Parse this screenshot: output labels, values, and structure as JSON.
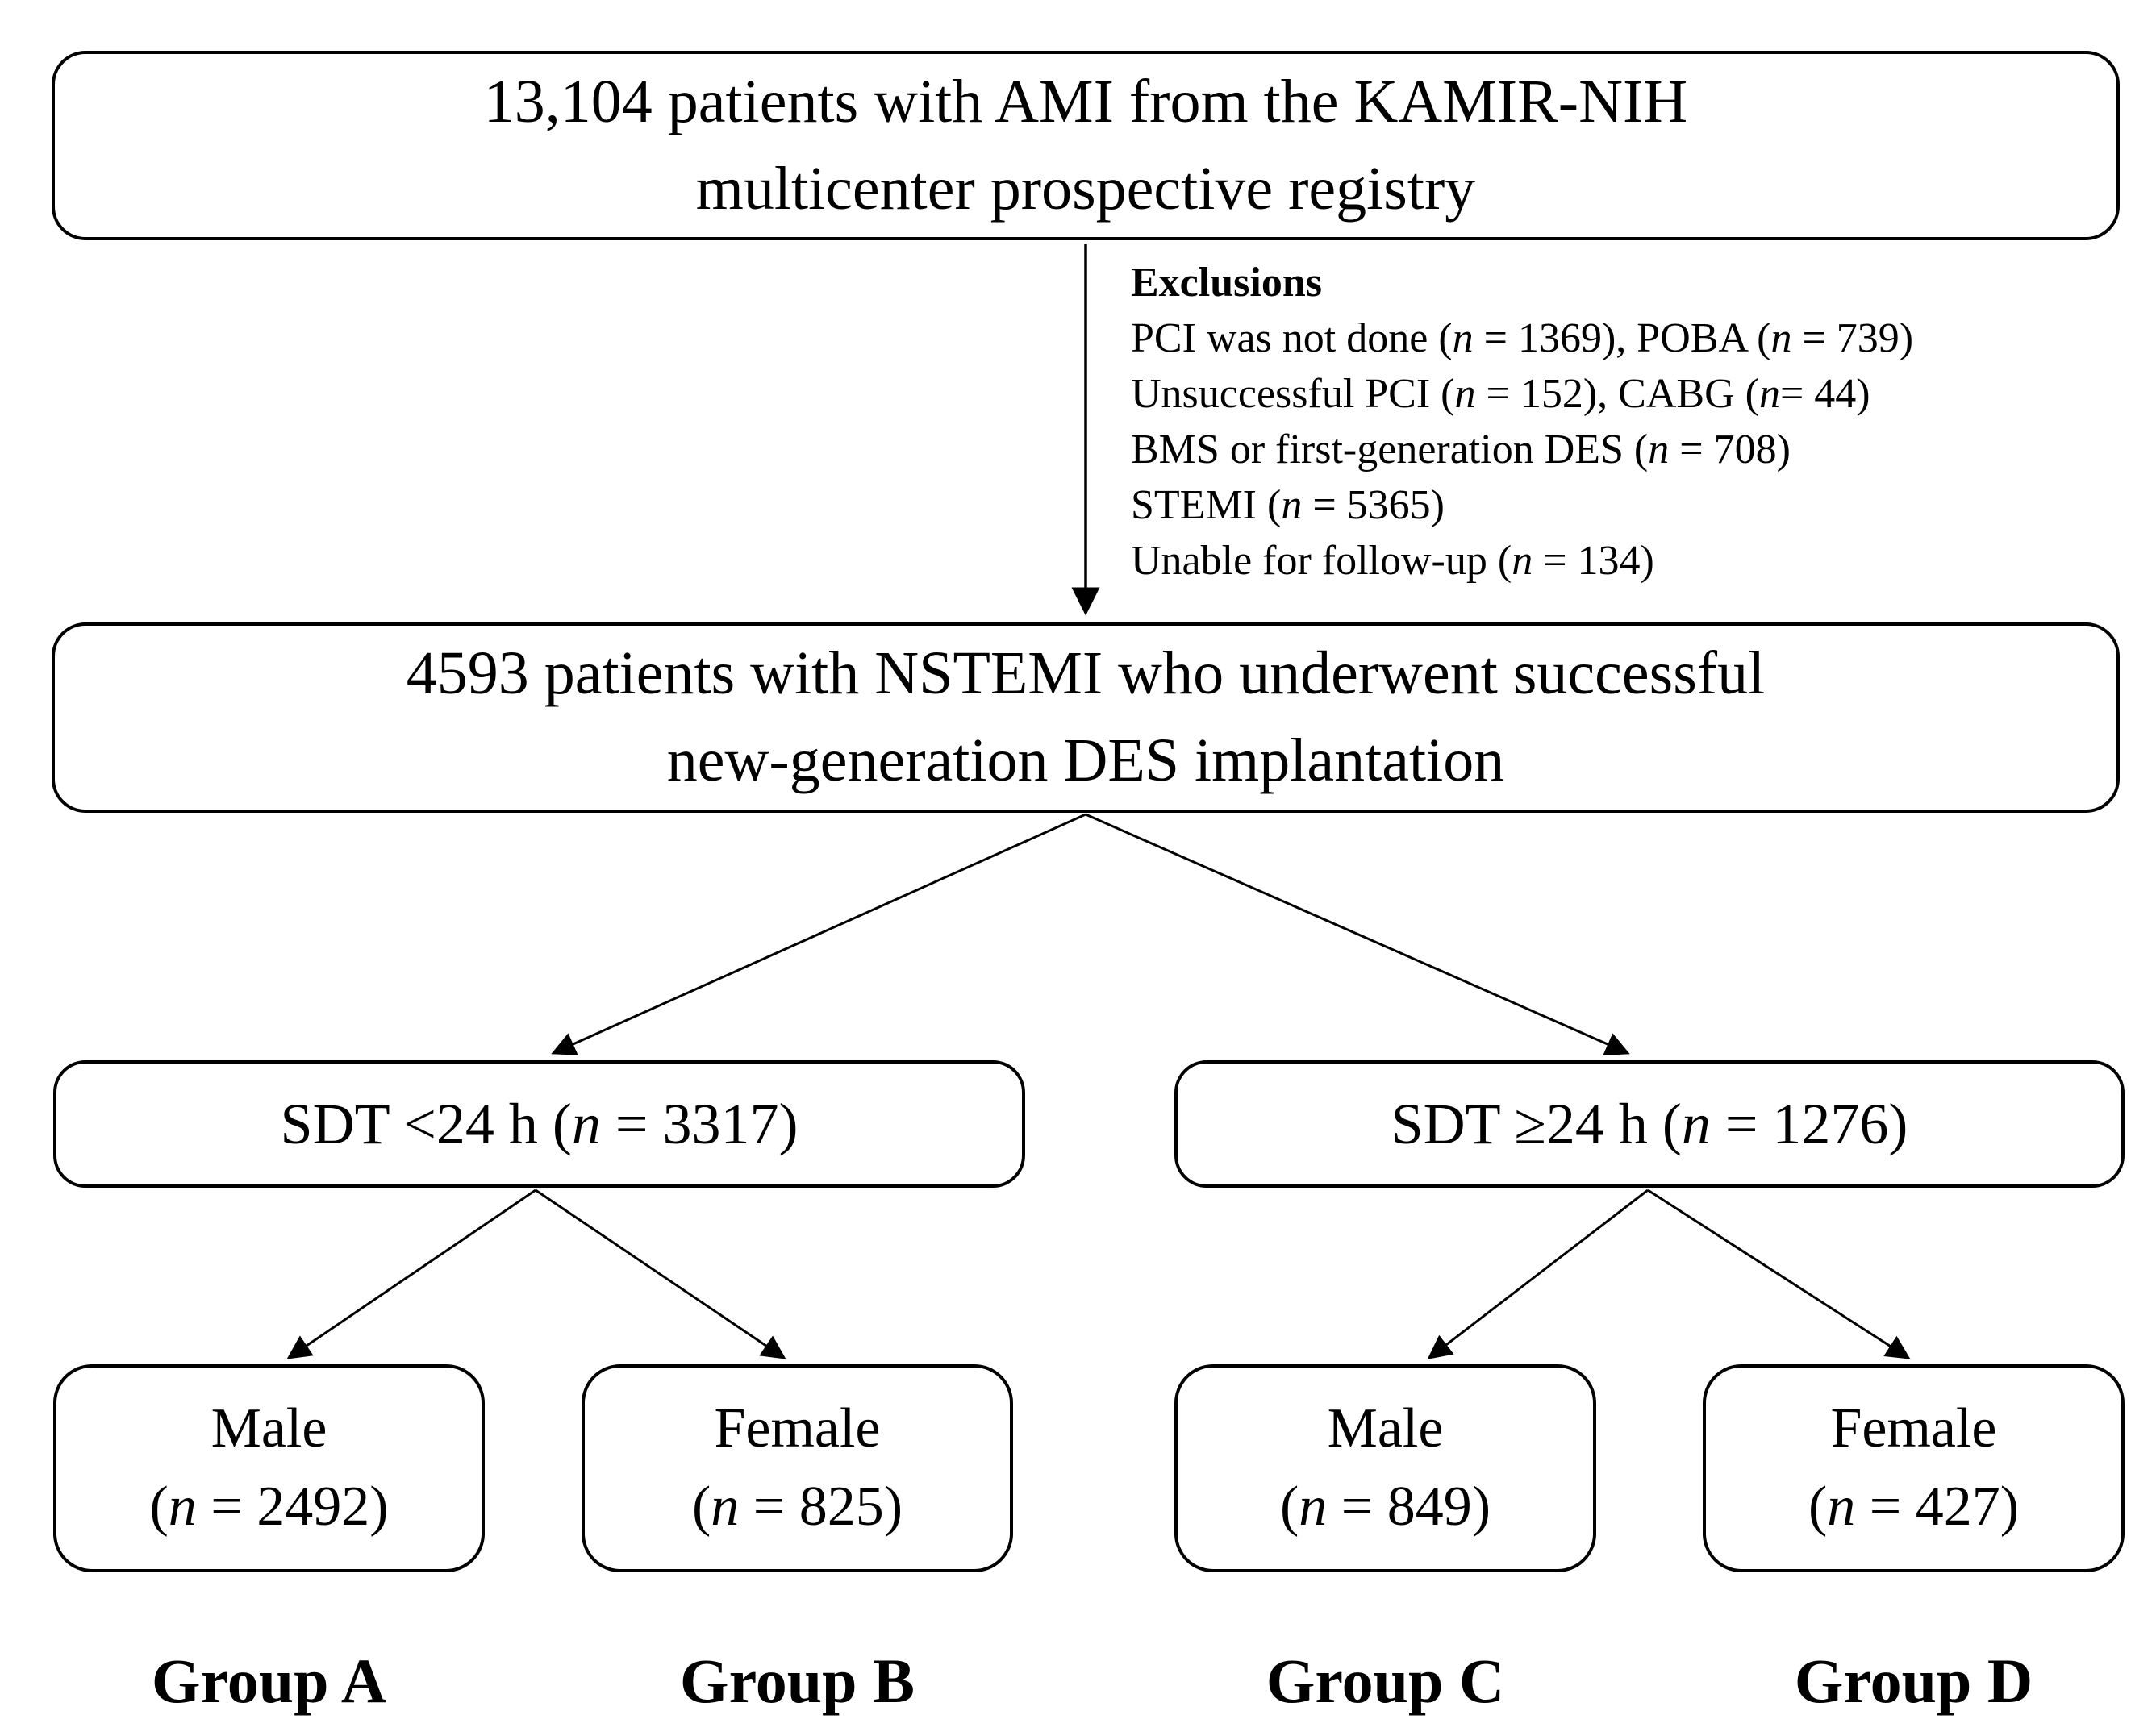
{
  "canvas": {
    "background_color": "#ffffff",
    "line_color": "#000000"
  },
  "top_box": {
    "line1": "13,104 patients with AMI from the KAMIR-NIH",
    "line2": "multicenter prospective registry"
  },
  "exclusions": {
    "title": "Exclusions",
    "items": [
      [
        {
          "t": "PCI was not done ("
        },
        {
          "t": "n",
          "i": true
        },
        {
          "t": " = 1369), POBA ("
        },
        {
          "t": "n",
          "i": true
        },
        {
          "t": " = 739)"
        }
      ],
      [
        {
          "t": "Unsuccessful PCI ("
        },
        {
          "t": "n",
          "i": true
        },
        {
          "t": " = 152), CABG ("
        },
        {
          "t": "n",
          "i": true
        },
        {
          "t": "= 44)"
        }
      ],
      [
        {
          "t": "BMS or first-generation DES ("
        },
        {
          "t": "n",
          "i": true
        },
        {
          "t": " = 708)"
        }
      ],
      [
        {
          "t": "STEMI ("
        },
        {
          "t": "n",
          "i": true
        },
        {
          "t": " = 5365)"
        }
      ],
      [
        {
          "t": "Unable for follow-up ("
        },
        {
          "t": "n",
          "i": true
        },
        {
          "t": " = 134)"
        }
      ]
    ]
  },
  "second_box": {
    "line1": "4593 patients with NSTEMI who underwent successful",
    "line2": "new-generation DES implantation"
  },
  "sdt_boxes": [
    {
      "label": "SDT <24 h",
      "n": 3317,
      "segments": [
        {
          "t": "SDT <24 h ("
        },
        {
          "t": "n",
          "i": true
        },
        {
          "t": " = 3317)"
        }
      ]
    },
    {
      "label": "SDT ≥24 h",
      "n": 1276,
      "segments": [
        {
          "t": "SDT ≥24 h ("
        },
        {
          "t": "n",
          "i": true
        },
        {
          "t": " = 1276)"
        }
      ]
    }
  ],
  "leaf_boxes": [
    {
      "sex": "Male",
      "n": 2492,
      "segments": [
        {
          "t": "("
        },
        {
          "t": "n",
          "i": true
        },
        {
          "t": " = 2492)"
        }
      ],
      "group": "Group A"
    },
    {
      "sex": "Female",
      "n": 825,
      "segments": [
        {
          "t": "("
        },
        {
          "t": "n",
          "i": true
        },
        {
          "t": " = 825)"
        }
      ],
      "group": "Group B"
    },
    {
      "sex": "Male",
      "n": 849,
      "segments": [
        {
          "t": "("
        },
        {
          "t": "n",
          "i": true
        },
        {
          "t": " = 849)"
        }
      ],
      "group": "Group C"
    },
    {
      "sex": "Female",
      "n": 427,
      "segments": [
        {
          "t": "("
        },
        {
          "t": "n",
          "i": true
        },
        {
          "t": " = 427)"
        }
      ],
      "group": "Group D"
    }
  ]
}
